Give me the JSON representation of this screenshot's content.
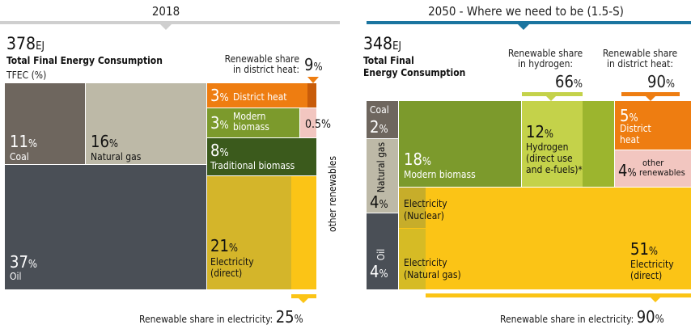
{
  "chart_data": [
    {
      "type": "treemap",
      "title": "2018",
      "total": {
        "value": "378",
        "unit": "EJ"
      },
      "subtitle_line1": "Total Final  Energy Consumption",
      "subtitle_line2": "TFEC (%)",
      "segments": [
        {
          "name": "Coal",
          "value": 11,
          "color": "#6e665e"
        },
        {
          "name": "Natural gas",
          "value": 16,
          "color": "#bdb9a7"
        },
        {
          "name": "Oil",
          "value": 37,
          "color": "#4a4f56"
        },
        {
          "name": "District heat",
          "value": 3,
          "color": "#ee7d11"
        },
        {
          "name": "Modern biomass",
          "value": 3,
          "color": "#7c9a2c"
        },
        {
          "name": "Traditional biomass",
          "value": 8,
          "color": "#3b5a1c"
        },
        {
          "name": "Electricity (direct)",
          "value": 21,
          "color": "#d4b52a"
        },
        {
          "name": "other renewables",
          "value": 0.5,
          "color": "#f2c6c0"
        }
      ],
      "renewable_share_district_heat": {
        "label_line1": "Renewable share",
        "label_line2": "in district heat:",
        "value": "9",
        "unit": "%"
      },
      "renewable_share_electricity": {
        "label": "Renewable share in electricity:",
        "value": "25",
        "unit": "%"
      },
      "other_renewables_value": "0.5%",
      "other_renewables_label": "other renewables"
    },
    {
      "type": "treemap",
      "title": "2050  -  Where we need to be (1.5-S)",
      "total": {
        "value": "348",
        "unit": "EJ"
      },
      "subtitle_line1": "Total Final",
      "subtitle_line2": "Energy Consumption",
      "segments": [
        {
          "name": "Coal",
          "value": 2,
          "color": "#6e665e"
        },
        {
          "name": "Natural gas",
          "value": 4,
          "color": "#bdb9a7"
        },
        {
          "name": "Oil",
          "value": 4,
          "color": "#4a4f56"
        },
        {
          "name": "Modern biomass",
          "value": 18,
          "color": "#7c9a2c"
        },
        {
          "name": "Hydrogen (direct use and e-fuels)*",
          "value": 12,
          "color": "#c4d24a"
        },
        {
          "name": "District heat",
          "value": 5,
          "color": "#ee7d11"
        },
        {
          "name": "other renewables",
          "value": 4,
          "color": "#f2c6c0"
        },
        {
          "name": "Electricity (direct)",
          "value": 51,
          "color": "#fbc416"
        }
      ],
      "renewable_share_hydrogen": {
        "label_line1": "Renewable share",
        "label_line2": "in hydrogen:",
        "value": "66",
        "unit": "%"
      },
      "renewable_share_district_heat": {
        "label_line1": "Renewable share",
        "label_line2": "in district heat:",
        "value": "90",
        "unit": "%"
      },
      "renewable_share_electricity": {
        "label": "Renewable share in electricity:",
        "value": "90",
        "unit": "%"
      }
    }
  ],
  "labels": {
    "coal": "Coal",
    "natural_gas": "Natural gas",
    "oil": "Oil",
    "district_heat": "District heat",
    "modern": "Modern",
    "biomass": "biomass",
    "modern_biomass": "Modern biomass",
    "traditional_biomass": "Traditional biomass",
    "electricity": "Electricity",
    "direct": "(direct)",
    "nuclear": "(Nuclear)",
    "nat_gas_paren": "(Natural gas)",
    "hydrogen": "Hydrogen",
    "direct_use": "(direct use",
    "efuels": "and e-fuels)*",
    "district": "District",
    "heat": "heat",
    "other": "other",
    "renewables": "renewables"
  },
  "colors": {
    "header_bar_2018": "#cfcfcf",
    "header_bar_2050": "#1b75a0",
    "renewable_marker": "#c4d24a",
    "electricity_nuclear": "#c7ad2a",
    "electricity_gas": "#d6bb25"
  }
}
